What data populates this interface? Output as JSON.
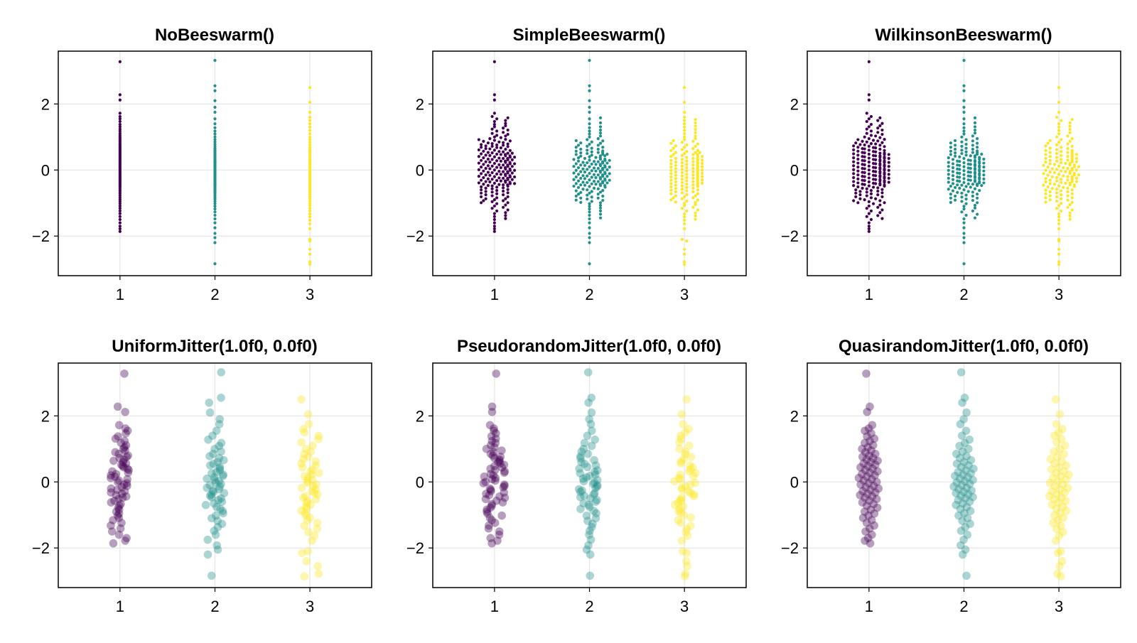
{
  "colors": {
    "group1": "#440154",
    "group2": "#21908c",
    "group3": "#fde725",
    "grid": "#e6e6e6"
  },
  "chart_data": [
    {
      "type": "scatter",
      "title": "NoBeeswarm()",
      "style": "small-dots",
      "x_ticks": [
        "1",
        "2",
        "3"
      ],
      "y_ticks": [
        "2",
        "0",
        "−2"
      ],
      "xlim": [
        0.35,
        3.65
      ],
      "ylim": [
        -3.2,
        3.6
      ],
      "grid": true
    },
    {
      "type": "scatter",
      "title": "SimpleBeeswarm()",
      "style": "small-dots",
      "x_ticks": [
        "1",
        "2",
        "3"
      ],
      "y_ticks": [
        "2",
        "0",
        "−2"
      ],
      "xlim": [
        0.35,
        3.65
      ],
      "ylim": [
        -3.2,
        3.6
      ],
      "grid": true
    },
    {
      "type": "scatter",
      "title": "WilkinsonBeeswarm()",
      "style": "small-dots",
      "x_ticks": [
        "1",
        "2",
        "3"
      ],
      "y_ticks": [
        "2",
        "0",
        "−2"
      ],
      "xlim": [
        0.35,
        3.65
      ],
      "ylim": [
        -3.2,
        3.6
      ],
      "grid": true
    },
    {
      "type": "scatter",
      "title": "UniformJitter(1.0f0, 0.0f0)",
      "style": "translucent-circles",
      "x_ticks": [
        "1",
        "2",
        "3"
      ],
      "y_ticks": [
        "2",
        "0",
        "−2"
      ],
      "xlim": [
        0.35,
        3.65
      ],
      "ylim": [
        -3.2,
        3.6
      ],
      "grid": true
    },
    {
      "type": "scatter",
      "title": "PseudorandomJitter(1.0f0, 0.0f0)",
      "style": "translucent-circles",
      "x_ticks": [
        "1",
        "2",
        "3"
      ],
      "y_ticks": [
        "2",
        "0",
        "−2"
      ],
      "xlim": [
        0.35,
        3.65
      ],
      "ylim": [
        -3.2,
        3.6
      ],
      "grid": true
    },
    {
      "type": "scatter",
      "title": "QuasirandomJitter(1.0f0, 0.0f0)",
      "style": "translucent-circles",
      "x_ticks": [
        "1",
        "2",
        "3"
      ],
      "y_ticks": [
        "2",
        "0",
        "−2"
      ],
      "xlim": [
        0.35,
        3.65
      ],
      "ylim": [
        -3.2,
        3.6
      ],
      "grid": true
    }
  ],
  "groups": [
    {
      "x": 1,
      "values": [
        3.28,
        2.28,
        2.12,
        1.72,
        1.62,
        1.55,
        1.47,
        1.38,
        1.31,
        1.24,
        1.18,
        1.11,
        1.05,
        1.0,
        0.95,
        0.9,
        0.85,
        0.8,
        0.76,
        0.72,
        0.68,
        0.64,
        0.6,
        0.56,
        0.52,
        0.48,
        0.44,
        0.4,
        0.36,
        0.32,
        0.28,
        0.24,
        0.2,
        0.16,
        0.12,
        0.08,
        0.04,
        0.0,
        -0.04,
        -0.08,
        -0.12,
        -0.16,
        -0.2,
        -0.24,
        -0.28,
        -0.32,
        -0.36,
        -0.4,
        -0.44,
        -0.48,
        -0.52,
        -0.57,
        -0.62,
        -0.67,
        -0.72,
        -0.78,
        -0.84,
        -0.9,
        -0.96,
        -1.02,
        -1.09,
        -1.16,
        -1.24,
        -1.32,
        -1.41,
        -1.5,
        -1.6,
        -1.7,
        -1.78,
        -1.86
      ]
    },
    {
      "x": 2,
      "values": [
        3.32,
        2.55,
        2.4,
        2.1,
        1.9,
        1.75,
        1.55,
        1.4,
        1.28,
        1.18,
        1.09,
        1.0,
        0.92,
        0.85,
        0.78,
        0.72,
        0.66,
        0.6,
        0.55,
        0.5,
        0.45,
        0.4,
        0.35,
        0.3,
        0.26,
        0.22,
        0.18,
        0.14,
        0.1,
        0.06,
        0.02,
        -0.02,
        -0.06,
        -0.1,
        -0.14,
        -0.18,
        -0.22,
        -0.26,
        -0.3,
        -0.34,
        -0.38,
        -0.42,
        -0.46,
        -0.5,
        -0.55,
        -0.6,
        -0.65,
        -0.7,
        -0.76,
        -0.82,
        -0.88,
        -0.95,
        -1.02,
        -1.1,
        -1.18,
        -1.27,
        -1.37,
        -1.48,
        -1.6,
        -1.75,
        -1.92,
        -2.05,
        -2.2,
        -2.84
      ]
    },
    {
      "x": 3,
      "values": [
        2.5,
        2.05,
        1.75,
        1.6,
        1.5,
        1.4,
        1.3,
        1.2,
        1.1,
        1.0,
        0.92,
        0.84,
        0.76,
        0.69,
        0.62,
        0.56,
        0.5,
        0.44,
        0.38,
        0.32,
        0.27,
        0.22,
        0.17,
        0.12,
        0.07,
        0.02,
        -0.03,
        -0.08,
        -0.13,
        -0.18,
        -0.23,
        -0.28,
        -0.33,
        -0.38,
        -0.43,
        -0.48,
        -0.53,
        -0.58,
        -0.63,
        -0.69,
        -0.75,
        -0.81,
        -0.87,
        -0.94,
        -1.01,
        -1.08,
        -1.16,
        -1.24,
        -1.33,
        -1.42,
        -1.52,
        -1.63,
        -1.78,
        -2.1,
        -2.15,
        -2.4,
        -2.55,
        -2.78,
        -2.86
      ]
    }
  ]
}
